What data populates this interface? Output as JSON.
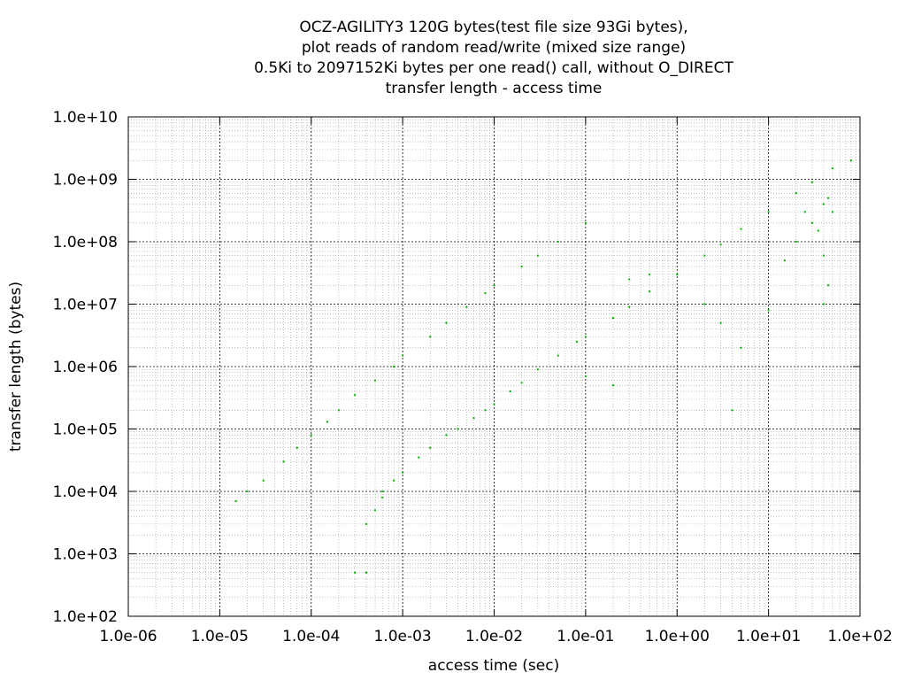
{
  "chart_data": {
    "type": "scatter",
    "title_lines": [
      "OCZ-AGILITY3 120G bytes(test file size 93Gi bytes),",
      "plot reads of random read/write (mixed size range)",
      "0.5Ki to 2097152Ki bytes per one read() call, without O_DIRECT",
      "transfer length - access time"
    ],
    "xlabel": "access time (sec)",
    "ylabel": "transfer length (bytes)",
    "x_scale": "log",
    "y_scale": "log",
    "xlim": [
      1e-06,
      100
    ],
    "ylim": [
      100,
      10000000000
    ],
    "x_ticks": [
      {
        "value": 1e-06,
        "label": "1.0e-06"
      },
      {
        "value": 1e-05,
        "label": "1.0e-05"
      },
      {
        "value": 0.0001,
        "label": "1.0e-04"
      },
      {
        "value": 0.001,
        "label": "1.0e-03"
      },
      {
        "value": 0.01,
        "label": "1.0e-02"
      },
      {
        "value": 0.1,
        "label": "1.0e-01"
      },
      {
        "value": 1,
        "label": "1.0e+00"
      },
      {
        "value": 10,
        "label": "1.0e+01"
      },
      {
        "value": 100,
        "label": "1.0e+02"
      }
    ],
    "y_ticks": [
      {
        "value": 100,
        "label": "1.0e+02"
      },
      {
        "value": 1000,
        "label": "1.0e+03"
      },
      {
        "value": 10000,
        "label": "1.0e+04"
      },
      {
        "value": 100000,
        "label": "1.0e+05"
      },
      {
        "value": 1000000,
        "label": "1.0e+06"
      },
      {
        "value": 10000000,
        "label": "1.0e+07"
      },
      {
        "value": 100000000,
        "label": "1.0e+08"
      },
      {
        "value": 1000000000,
        "label": "1.0e+09"
      },
      {
        "value": 10000000000,
        "label": "1.0e+10"
      }
    ],
    "grid": true,
    "minor_grid": true,
    "legend": "none",
    "colors": {
      "points": "#00b800",
      "major_grid": "#000000",
      "minor_grid": "#9a9a9a",
      "frame": "#000000"
    },
    "series": [
      {
        "color": "#00b800",
        "points": [
          [
            0.0004,
            3000
          ],
          [
            0.0005,
            5000
          ],
          [
            0.0006,
            8000
          ],
          [
            0.0006,
            10000
          ],
          [
            0.0008,
            15000
          ],
          [
            0.001,
            20000
          ],
          [
            0.0015,
            35000
          ],
          [
            0.002,
            50000
          ],
          [
            0.003,
            80000
          ],
          [
            0.004,
            100000
          ],
          [
            0.006,
            150000
          ],
          [
            0.008,
            200000
          ],
          [
            0.01,
            250000
          ],
          [
            0.015,
            400000
          ],
          [
            0.02,
            550000
          ],
          [
            0.03,
            900000
          ],
          [
            0.05,
            1500000
          ],
          [
            0.08,
            2500000
          ],
          [
            0.1,
            3000000
          ],
          [
            0.2,
            6000000
          ],
          [
            0.3,
            9000000
          ],
          [
            0.5,
            16000000
          ],
          [
            1,
            30000000
          ],
          [
            2,
            60000000
          ],
          [
            3,
            90000000
          ],
          [
            5,
            160000000
          ],
          [
            10,
            300000000
          ],
          [
            20,
            600000000
          ],
          [
            30,
            900000000
          ],
          [
            50,
            1500000000
          ],
          [
            80,
            2000000000
          ],
          [
            1.5e-05,
            7000
          ],
          [
            2e-05,
            10000
          ],
          [
            3e-05,
            15000
          ],
          [
            5e-05,
            30000
          ],
          [
            7e-05,
            50000
          ],
          [
            0.0001,
            80000
          ],
          [
            0.00015,
            130000
          ],
          [
            0.0002,
            200000
          ],
          [
            0.0003,
            350000
          ],
          [
            0.0005,
            600000
          ],
          [
            0.0008,
            1000000
          ],
          [
            0.001,
            1500000
          ],
          [
            0.002,
            3000000
          ],
          [
            0.003,
            5000000
          ],
          [
            0.005,
            9000000
          ],
          [
            0.008,
            15000000
          ],
          [
            0.01,
            20000000
          ],
          [
            0.02,
            40000000
          ],
          [
            0.03,
            60000000
          ],
          [
            0.05,
            100000000
          ],
          [
            0.1,
            200000000
          ],
          [
            0.3,
            25000000
          ],
          [
            0.5,
            30000000
          ],
          [
            2,
            10000000
          ],
          [
            3,
            5000000
          ],
          [
            5,
            2000000
          ],
          [
            10,
            8000000
          ],
          [
            15,
            50000000
          ],
          [
            20,
            100000000
          ],
          [
            25,
            300000000
          ],
          [
            30,
            200000000
          ],
          [
            35,
            150000000
          ],
          [
            40,
            400000000
          ],
          [
            45,
            500000000
          ],
          [
            50,
            300000000
          ],
          [
            40,
            60000000
          ],
          [
            45,
            20000000
          ],
          [
            40,
            10000000
          ],
          [
            0.0003,
            500
          ],
          [
            0.0004,
            500
          ],
          [
            4,
            200000
          ],
          [
            0.1,
            700000
          ],
          [
            0.2,
            500000
          ]
        ]
      }
    ]
  }
}
